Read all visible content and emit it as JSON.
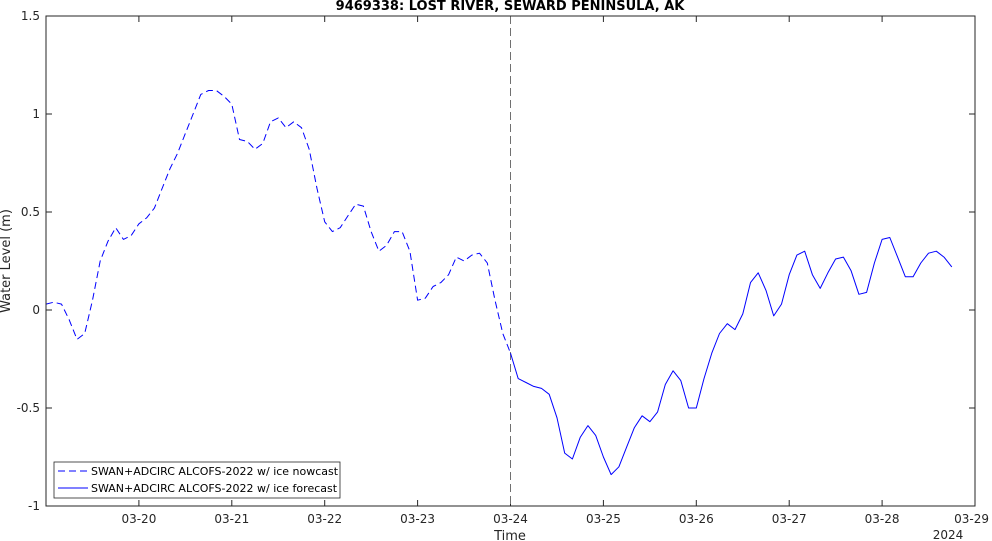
{
  "chart_data": {
    "type": "line",
    "title": "9469338: LOST RIVER, SEWARD PENINSULA, AK",
    "xlabel": "Time",
    "ylabel": "Water Level (m)",
    "year_label": "2024",
    "xlim": [
      "2024-03-19 00:00",
      "2024-03-29 00:00"
    ],
    "ylim": [
      -1,
      1.5
    ],
    "x_ticks": [
      "03-20",
      "03-21",
      "03-22",
      "03-23",
      "03-24",
      "03-25",
      "03-26",
      "03-27",
      "03-28",
      "03-29"
    ],
    "y_ticks": [
      "-1",
      "-0.5",
      "0",
      "0.5",
      "1",
      "1.5"
    ],
    "grid": false,
    "legend_position": "bottom-left",
    "nowcast_end": "2024-03-24 00:00",
    "series": [
      {
        "name": "SWAN+ADCIRC ALCOFS-2022 w/ ice nowcast",
        "color": "#0000ff",
        "style": "dashed",
        "points": [
          [
            "2024-03-19 00:00",
            0.03
          ],
          [
            "2024-03-19 02:00",
            0.04
          ],
          [
            "2024-03-19 04:00",
            0.03
          ],
          [
            "2024-03-19 06:00",
            -0.05
          ],
          [
            "2024-03-19 08:00",
            -0.15
          ],
          [
            "2024-03-19 10:00",
            -0.12
          ],
          [
            "2024-03-19 12:00",
            0.05
          ],
          [
            "2024-03-19 14:00",
            0.25
          ],
          [
            "2024-03-19 16:00",
            0.35
          ],
          [
            "2024-03-19 18:00",
            0.42
          ],
          [
            "2024-03-19 20:00",
            0.36
          ],
          [
            "2024-03-19 22:00",
            0.38
          ],
          [
            "2024-03-20 00:00",
            0.44
          ],
          [
            "2024-03-20 02:00",
            0.47
          ],
          [
            "2024-03-20 04:00",
            0.52
          ],
          [
            "2024-03-20 06:00",
            0.62
          ],
          [
            "2024-03-20 08:00",
            0.72
          ],
          [
            "2024-03-20 10:00",
            0.8
          ],
          [
            "2024-03-20 12:00",
            0.9
          ],
          [
            "2024-03-20 14:00",
            1.0
          ],
          [
            "2024-03-20 16:00",
            1.1
          ],
          [
            "2024-03-20 18:00",
            1.12
          ],
          [
            "2024-03-20 20:00",
            1.12
          ],
          [
            "2024-03-20 22:00",
            1.09
          ],
          [
            "2024-03-21 00:00",
            1.05
          ],
          [
            "2024-03-21 02:00",
            0.87
          ],
          [
            "2024-03-21 04:00",
            0.86
          ],
          [
            "2024-03-21 06:00",
            0.82
          ],
          [
            "2024-03-21 08:00",
            0.85
          ],
          [
            "2024-03-21 10:00",
            0.96
          ],
          [
            "2024-03-21 12:00",
            0.98
          ],
          [
            "2024-03-21 14:00",
            0.93
          ],
          [
            "2024-03-21 16:00",
            0.96
          ],
          [
            "2024-03-21 18:00",
            0.93
          ],
          [
            "2024-03-21 20:00",
            0.82
          ],
          [
            "2024-03-21 22:00",
            0.62
          ],
          [
            "2024-03-22 00:00",
            0.45
          ],
          [
            "2024-03-22 02:00",
            0.4
          ],
          [
            "2024-03-22 04:00",
            0.42
          ],
          [
            "2024-03-22 06:00",
            0.48
          ],
          [
            "2024-03-22 08:00",
            0.54
          ],
          [
            "2024-03-22 10:00",
            0.53
          ],
          [
            "2024-03-22 12:00",
            0.4
          ],
          [
            "2024-03-22 14:00",
            0.3
          ],
          [
            "2024-03-22 16:00",
            0.33
          ],
          [
            "2024-03-22 18:00",
            0.4
          ],
          [
            "2024-03-22 20:00",
            0.4
          ],
          [
            "2024-03-22 22:00",
            0.3
          ],
          [
            "2024-03-23 00:00",
            0.05
          ],
          [
            "2024-03-23 02:00",
            0.06
          ],
          [
            "2024-03-23 04:00",
            0.12
          ],
          [
            "2024-03-23 06:00",
            0.14
          ],
          [
            "2024-03-23 08:00",
            0.18
          ],
          [
            "2024-03-23 10:00",
            0.27
          ],
          [
            "2024-03-23 12:00",
            0.25
          ],
          [
            "2024-03-23 14:00",
            0.28
          ],
          [
            "2024-03-23 16:00",
            0.29
          ],
          [
            "2024-03-23 18:00",
            0.24
          ],
          [
            "2024-03-23 20:00",
            0.05
          ],
          [
            "2024-03-23 22:00",
            -0.12
          ],
          [
            "2024-03-24 00:00",
            -0.22
          ]
        ]
      },
      {
        "name": "SWAN+ADCIRC ALCOFS-2022 w/ ice forecast",
        "color": "#0000ff",
        "style": "solid",
        "points": [
          [
            "2024-03-24 00:00",
            -0.22
          ],
          [
            "2024-03-24 02:00",
            -0.35
          ],
          [
            "2024-03-24 04:00",
            -0.37
          ],
          [
            "2024-03-24 06:00",
            -0.39
          ],
          [
            "2024-03-24 08:00",
            -0.4
          ],
          [
            "2024-03-24 10:00",
            -0.43
          ],
          [
            "2024-03-24 12:00",
            -0.55
          ],
          [
            "2024-03-24 14:00",
            -0.73
          ],
          [
            "2024-03-24 16:00",
            -0.76
          ],
          [
            "2024-03-24 18:00",
            -0.65
          ],
          [
            "2024-03-24 20:00",
            -0.59
          ],
          [
            "2024-03-24 22:00",
            -0.64
          ],
          [
            "2024-03-25 00:00",
            -0.75
          ],
          [
            "2024-03-25 02:00",
            -0.84
          ],
          [
            "2024-03-25 04:00",
            -0.8
          ],
          [
            "2024-03-25 06:00",
            -0.7
          ],
          [
            "2024-03-25 08:00",
            -0.6
          ],
          [
            "2024-03-25 10:00",
            -0.54
          ],
          [
            "2024-03-25 12:00",
            -0.57
          ],
          [
            "2024-03-25 14:00",
            -0.52
          ],
          [
            "2024-03-25 16:00",
            -0.38
          ],
          [
            "2024-03-25 18:00",
            -0.31
          ],
          [
            "2024-03-25 20:00",
            -0.36
          ],
          [
            "2024-03-25 22:00",
            -0.5
          ],
          [
            "2024-03-26 00:00",
            -0.5
          ],
          [
            "2024-03-26 02:00",
            -0.35
          ],
          [
            "2024-03-26 04:00",
            -0.22
          ],
          [
            "2024-03-26 06:00",
            -0.12
          ],
          [
            "2024-03-26 08:00",
            -0.07
          ],
          [
            "2024-03-26 10:00",
            -0.1
          ],
          [
            "2024-03-26 12:00",
            -0.02
          ],
          [
            "2024-03-26 14:00",
            0.14
          ],
          [
            "2024-03-26 16:00",
            0.19
          ],
          [
            "2024-03-26 18:00",
            0.1
          ],
          [
            "2024-03-26 20:00",
            -0.03
          ],
          [
            "2024-03-26 22:00",
            0.03
          ],
          [
            "2024-03-27 00:00",
            0.18
          ],
          [
            "2024-03-27 02:00",
            0.28
          ],
          [
            "2024-03-27 04:00",
            0.3
          ],
          [
            "2024-03-27 06:00",
            0.18
          ],
          [
            "2024-03-27 08:00",
            0.11
          ],
          [
            "2024-03-27 10:00",
            0.19
          ],
          [
            "2024-03-27 12:00",
            0.26
          ],
          [
            "2024-03-27 14:00",
            0.27
          ],
          [
            "2024-03-27 16:00",
            0.2
          ],
          [
            "2024-03-27 18:00",
            0.08
          ],
          [
            "2024-03-27 20:00",
            0.09
          ],
          [
            "2024-03-27 22:00",
            0.24
          ],
          [
            "2024-03-28 00:00",
            0.36
          ],
          [
            "2024-03-28 02:00",
            0.37
          ],
          [
            "2024-03-28 04:00",
            0.27
          ],
          [
            "2024-03-28 06:00",
            0.17
          ],
          [
            "2024-03-28 08:00",
            0.17
          ],
          [
            "2024-03-28 10:00",
            0.24
          ],
          [
            "2024-03-28 12:00",
            0.29
          ],
          [
            "2024-03-28 14:00",
            0.3
          ],
          [
            "2024-03-28 16:00",
            0.27
          ],
          [
            "2024-03-28 18:00",
            0.22
          ]
        ]
      }
    ]
  }
}
